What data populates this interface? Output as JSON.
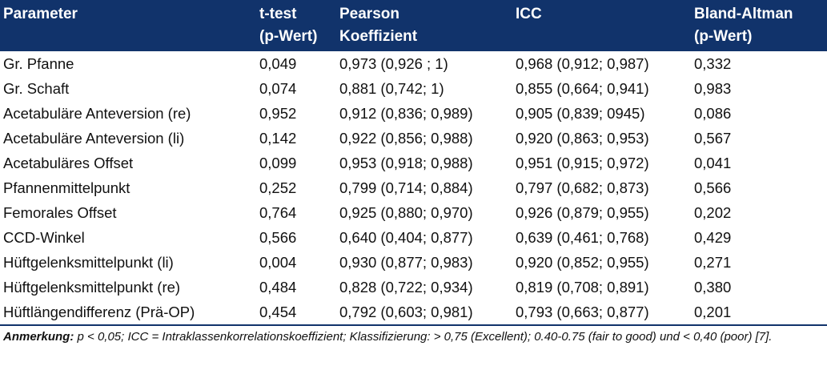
{
  "table": {
    "headers": [
      {
        "line1": "Parameter",
        "line2": ""
      },
      {
        "line1": "t-test",
        "line2": "(p-Wert)"
      },
      {
        "line1": "Pearson",
        "line2": "Koeffizient"
      },
      {
        "line1": "ICC",
        "line2": ""
      },
      {
        "line1": "Bland-Altman",
        "line2": "(p-Wert)"
      }
    ],
    "rows": [
      [
        "Gr. Pfanne",
        "0,049",
        "0,973 (0,926 ; 1)",
        "0,968 (0,912; 0,987)",
        "0,332"
      ],
      [
        "Gr. Schaft",
        "0,074",
        "0,881 (0,742; 1)",
        "0,855 (0,664; 0,941)",
        "0,983"
      ],
      [
        "Acetabuläre Anteversion (re)",
        "0,952",
        "0,912 (0,836; 0,989)",
        "0,905 (0,839; 0945)",
        "0,086"
      ],
      [
        "Acetabuläre Anteversion (li)",
        "0,142",
        "0,922 (0,856; 0,988)",
        "0,920 (0,863; 0,953)",
        "0,567"
      ],
      [
        "Acetabuläres Offset",
        "0,099",
        "0,953 (0,918; 0,988)",
        "0,951 (0,915; 0,972)",
        "0,041"
      ],
      [
        "Pfannenmittelpunkt",
        "0,252",
        "0,799 (0,714; 0,884)",
        "0,797 (0,682; 0,873)",
        "0,566"
      ],
      [
        "Femorales Offset",
        "0,764",
        "0,925 (0,880; 0,970)",
        "0,926 (0,879; 0,955)",
        "0,202"
      ],
      [
        "CCD-Winkel",
        "0,566",
        "0,640 (0,404; 0,877)",
        "0,639 (0,461; 0,768)",
        "0,429"
      ],
      [
        "Hüftgelenksmittelpunkt (li)",
        "0,004",
        "0,930 (0,877; 0,983)",
        "0,920 (0,852; 0,955)",
        "0,271"
      ],
      [
        "Hüftgelenksmittelpunkt (re)",
        "0,484",
        "0,828 (0,722; 0,934)",
        "0,819 (0,708; 0,891)",
        "0,380"
      ],
      [
        "Hüftlängendifferenz (Prä-OP)",
        "0,454",
        "0,792 (0,603; 0,981)",
        "0,793 (0,663; 0,877)",
        "0,201"
      ]
    ]
  },
  "note": {
    "label": "Anmerkung:",
    "text": " p < 0,05; ICC = Intraklassenkorrelationskoeffizient; Klassifizierung: > 0,75 (Excellent); 0.40-0.75 (fair to good) und < 0,40 (poor) [7]."
  },
  "colors": {
    "header_bg": "#11336b",
    "header_text": "#ffffff"
  }
}
